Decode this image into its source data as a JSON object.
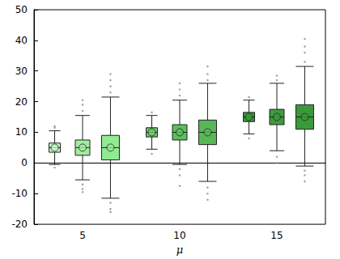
{
  "chart_data": {
    "type": "boxplot",
    "categories": [
      "5",
      "10",
      "15"
    ],
    "x_label": "μ",
    "ylim": [
      -20,
      50
    ],
    "yticks": [
      -20,
      -10,
      0,
      10,
      20,
      30,
      40,
      50
    ],
    "grid": false,
    "marker": "circle",
    "series": [
      {
        "colors": [
          "#c4f4c4",
          "#6ccc6c",
          "#3a9a3a"
        ],
        "boxes": [
          [
            -0.5,
            3.5,
            5,
            6.5,
            10.5
          ],
          [
            4.5,
            8.5,
            10,
            11.5,
            15.5
          ],
          [
            9.5,
            13.5,
            15,
            16.5,
            20.5
          ]
        ],
        "means": [
          5,
          10,
          15
        ],
        "outliers": [
          [
            11.5,
            12,
            -1.5
          ],
          [
            16.5,
            3
          ],
          [
            21.5,
            8
          ]
        ]
      },
      {
        "colors": [
          "#a2eca2",
          "#5cc05c",
          "#3c9c3c"
        ],
        "boxes": [
          [
            -5.5,
            2.5,
            5,
            7.5,
            15.5
          ],
          [
            -0.5,
            7.5,
            10,
            12.5,
            20.5
          ],
          [
            4,
            12.5,
            15,
            17.5,
            26
          ]
        ],
        "means": [
          5,
          10,
          15
        ],
        "outliers": [
          [
            17,
            19,
            20.5,
            -7,
            -8.5,
            -9.5
          ],
          [
            22,
            24,
            26,
            -2,
            -4,
            -7.5
          ],
          [
            27,
            28.5,
            2,
            0
          ]
        ]
      },
      {
        "colors": [
          "#92ea92",
          "#58b858",
          "#3a9a3a"
        ],
        "boxes": [
          [
            -11.5,
            1,
            5,
            9,
            21.5
          ],
          [
            -6,
            6,
            10,
            14,
            26
          ],
          [
            -1,
            11,
            15,
            19,
            31.5
          ]
        ],
        "means": [
          5,
          10,
          15
        ],
        "outliers": [
          [
            23,
            25,
            27,
            29,
            -13,
            -15,
            -16
          ],
          [
            27,
            29,
            31.5,
            -8,
            -10,
            -12
          ],
          [
            33,
            36,
            38,
            40.5,
            -2.5,
            -4,
            -6
          ]
        ]
      }
    ]
  }
}
